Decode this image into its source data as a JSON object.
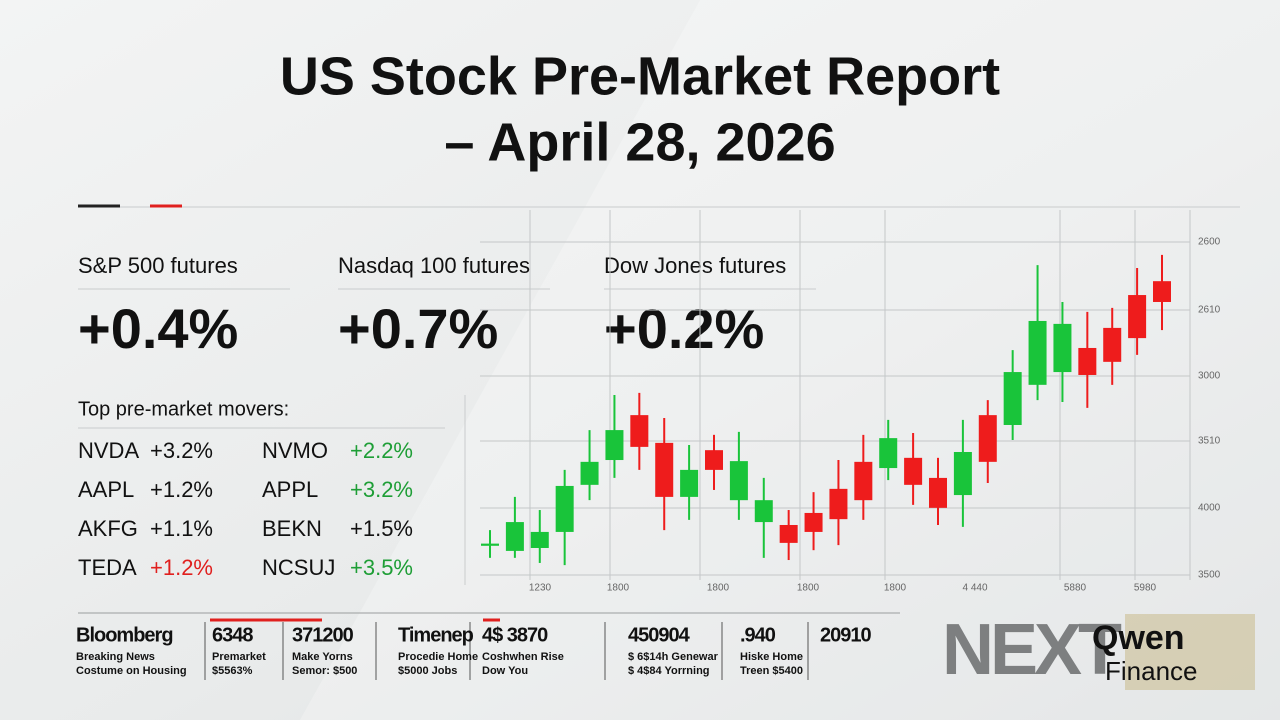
{
  "header": {
    "title_lines": [
      "US Stock Pre-Market Report",
      "– April 28, 2026"
    ]
  },
  "futures": [
    {
      "name": "S&P 500 futures",
      "change": "+0.4%"
    },
    {
      "name": "Nasdaq 100 futures",
      "change": "+0.7%"
    },
    {
      "name": "Dow Jones futures",
      "change": "+0.2%"
    }
  ],
  "movers": {
    "heading": "Top pre-market movers:",
    "items": [
      {
        "ticker": "NVDA",
        "change": "+3.2%",
        "color": "#111111"
      },
      {
        "ticker": "NVMO",
        "change": "+2.2%",
        "color": "#1e9e36"
      },
      {
        "ticker": "AAPL",
        "change": "+1.2%",
        "color": "#111111"
      },
      {
        "ticker": "APPL",
        "change": "+3.2%",
        "color": "#1e9e36"
      },
      {
        "ticker": "AKFG",
        "change": "+1.1%",
        "color": "#111111"
      },
      {
        "ticker": "BEKN",
        "change": "+1.5%",
        "color": "#111111"
      },
      {
        "ticker": "TEDA",
        "change": "+1.2%",
        "color": "#e0201e"
      },
      {
        "ticker": "NCSUJ",
        "change": "+3.5%",
        "color": "#1e9e36"
      }
    ]
  },
  "chart_data": {
    "type": "candlestick",
    "up_color": "#19c43a",
    "down_color": "#ee1c1c",
    "ylim": [
      0,
      100
    ],
    "y_axis_labels": [
      "2600",
      "2610",
      "3000",
      "3510",
      "4000",
      "3500"
    ],
    "x_axis_labels": [
      "1230",
      "1800",
      "1800",
      "1800",
      "1800",
      "4 440",
      "5880",
      "5980"
    ],
    "candles": [
      {
        "open": 8.0,
        "high": 12.3,
        "low": 4.7,
        "close": 8.6
      },
      {
        "open": 6.6,
        "high": 21.4,
        "low": 4.7,
        "close": 14.5
      },
      {
        "open": 7.4,
        "high": 17.8,
        "low": 3.3,
        "close": 11.8
      },
      {
        "open": 11.8,
        "high": 28.8,
        "low": 2.7,
        "close": 24.4
      },
      {
        "open": 24.7,
        "high": 39.7,
        "low": 20.5,
        "close": 31.0
      },
      {
        "open": 31.5,
        "high": 49.3,
        "low": 26.6,
        "close": 39.7
      },
      {
        "open": 43.8,
        "high": 49.9,
        "low": 28.8,
        "close": 35.1
      },
      {
        "open": 36.2,
        "high": 43.0,
        "low": 12.3,
        "close": 21.4
      },
      {
        "open": 21.4,
        "high": 35.6,
        "low": 15.1,
        "close": 28.8
      },
      {
        "open": 34.2,
        "high": 38.4,
        "low": 23.3,
        "close": 28.8
      },
      {
        "open": 20.5,
        "high": 39.2,
        "low": 15.1,
        "close": 31.2
      },
      {
        "open": 14.5,
        "high": 26.6,
        "low": 4.7,
        "close": 20.5
      },
      {
        "open": 13.7,
        "high": 17.8,
        "low": 4.1,
        "close": 8.8
      },
      {
        "open": 17.0,
        "high": 22.7,
        "low": 6.8,
        "close": 11.8
      },
      {
        "open": 23.6,
        "high": 31.5,
        "low": 8.2,
        "close": 15.3
      },
      {
        "open": 31.0,
        "high": 38.4,
        "low": 15.1,
        "close": 20.5
      },
      {
        "open": 29.3,
        "high": 42.5,
        "low": 26.0,
        "close": 37.5
      },
      {
        "open": 32.1,
        "high": 38.9,
        "low": 19.2,
        "close": 24.7
      },
      {
        "open": 26.6,
        "high": 32.1,
        "low": 13.7,
        "close": 18.4
      },
      {
        "open": 21.9,
        "high": 42.5,
        "low": 13.2,
        "close": 33.7
      },
      {
        "open": 43.8,
        "high": 47.9,
        "low": 25.2,
        "close": 31.0
      },
      {
        "open": 41.1,
        "high": 61.6,
        "low": 37.0,
        "close": 55.6
      },
      {
        "open": 52.1,
        "high": 84.9,
        "low": 47.9,
        "close": 69.6
      },
      {
        "open": 55.6,
        "high": 74.8,
        "low": 47.4,
        "close": 68.8
      },
      {
        "open": 62.2,
        "high": 72.1,
        "low": 45.8,
        "close": 54.8
      },
      {
        "open": 67.7,
        "high": 73.2,
        "low": 52.1,
        "close": 58.4
      },
      {
        "open": 76.7,
        "high": 84.1,
        "low": 60.3,
        "close": 64.9
      },
      {
        "open": 80.5,
        "high": 87.7,
        "low": 67.1,
        "close": 74.8
      }
    ]
  },
  "footer": {
    "columns": [
      [
        "Bloomberg",
        "Breaking News",
        "Costume on Housing"
      ],
      [
        "6348",
        "Premarket",
        "$5563%"
      ],
      [
        "371200",
        "Make Yorns",
        "Semor: $500"
      ],
      [
        "Timenep",
        "Procedie Home",
        "$5000 Jobs"
      ],
      [
        "4$ 3870",
        "Coshwhen Rise",
        "Dow You"
      ],
      [
        "450904",
        "$ 6$14h Genewar",
        "$ 4$84 Yorrning"
      ],
      [
        ".940",
        "Hiske Home",
        "Treen $5400"
      ],
      [
        "20910"
      ]
    ],
    "logo": {
      "mark": "NEXT",
      "brand": "Qwen",
      "sub": "Finance"
    }
  }
}
